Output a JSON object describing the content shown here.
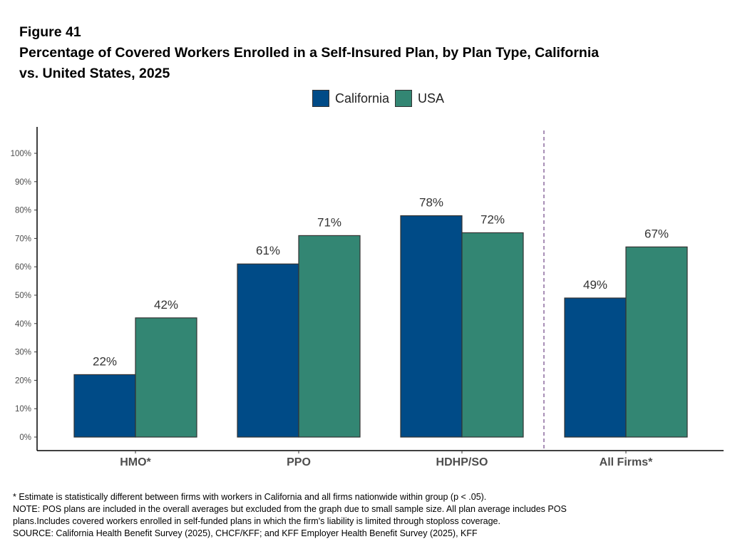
{
  "chart_data": {
    "type": "bar",
    "figure_label": "Figure 41",
    "title": "Percentage of Covered Workers Enrolled in a Self-Insured Plan, by Plan Type, California vs. United States, 2025",
    "title_lines": [
      "Percentage of Covered Workers Enrolled in a Self-Insured Plan, by Plan Type, California",
      "vs. United States, 2025"
    ],
    "categories": [
      "HMO*",
      "PPO",
      "HDHP/SO",
      "All Firms*"
    ],
    "series": [
      {
        "name": "California",
        "color": "#004B87",
        "values": [
          22,
          61,
          78,
          49
        ],
        "labels": [
          "22%",
          "61%",
          "78%",
          "49%"
        ]
      },
      {
        "name": "USA",
        "color": "#338673",
        "values": [
          42,
          71,
          72,
          67
        ],
        "labels": [
          "42%",
          "71%",
          "72%",
          "67%"
        ]
      }
    ],
    "ylim": [
      0,
      100
    ],
    "yticks": [
      "0%",
      "10%",
      "20%",
      "30%",
      "40%",
      "50%",
      "60%",
      "70%",
      "80%",
      "90%",
      "100%"
    ],
    "xlabel": "",
    "ylabel": "",
    "legend": "top",
    "grid": false,
    "separator": "dashed line before All Firms*",
    "separator_color": "#8B6A9E"
  },
  "notes": [
    "* Estimate is statistically different between firms with workers in California and all firms nationwide within group (p < .05).",
    "NOTE: POS plans are included in the overall averages but excluded from the graph due to small sample size. All plan average includes POS",
    "plans.Includes covered workers enrolled in self-funded plans in which the firm's liability is limited through stoploss coverage.",
    "SOURCE: California Health Benefit Survey (2025), CHCF/KFF; and KFF Employer Health Benefit Survey (2025), KFF"
  ]
}
